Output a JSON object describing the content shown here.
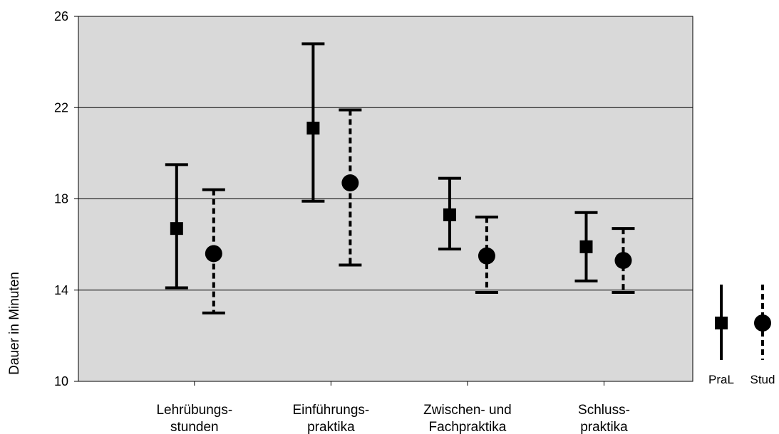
{
  "chart_data": {
    "type": "errorbar",
    "ylabel": "Dauer in Minuten",
    "ylim": [
      10,
      26
    ],
    "yticks": [
      10,
      14,
      18,
      22,
      26
    ],
    "grid": "horizontal",
    "plot_background": "#d9d9d9",
    "categories": [
      [
        "Lehrübungs-",
        "stunden"
      ],
      [
        "Einführungs-",
        "praktika"
      ],
      [
        "Zwischen- und",
        "Fachpraktika"
      ],
      [
        "Schluss-",
        "praktika"
      ]
    ],
    "series": [
      {
        "name": "PraL",
        "marker": "square",
        "line_style": "solid",
        "values": [
          16.7,
          21.1,
          17.3,
          15.9
        ],
        "upper": [
          19.5,
          24.8,
          18.9,
          17.4
        ],
        "lower": [
          14.1,
          17.9,
          15.8,
          14.4
        ]
      },
      {
        "name": "Stud",
        "marker": "circle",
        "line_style": "dashed",
        "values": [
          15.6,
          18.7,
          15.5,
          15.3
        ],
        "upper": [
          18.4,
          21.9,
          17.2,
          16.7
        ],
        "lower": [
          13.0,
          15.1,
          13.9,
          13.9
        ]
      }
    ],
    "legend_position": "right"
  }
}
